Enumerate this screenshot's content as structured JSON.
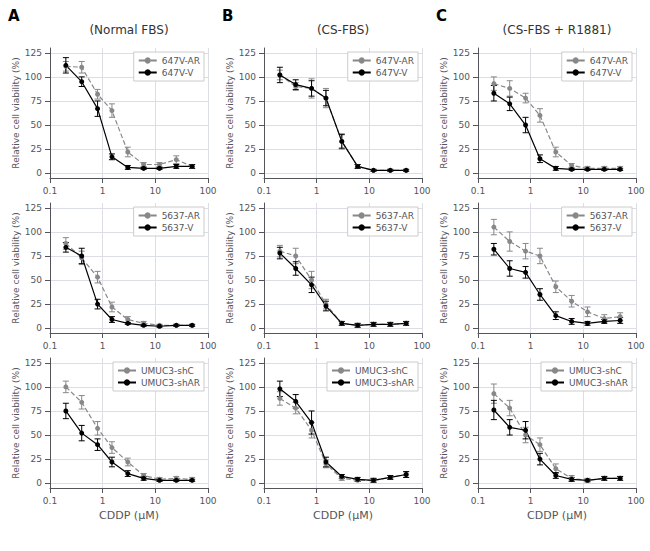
{
  "chart_data": [
    {
      "type": "line",
      "title": "(Normal FBS)",
      "panel_label": "A",
      "y_label": "Relative cell viability (%)",
      "x": [
        0.2,
        0.4,
        0.8,
        1.5,
        3,
        6,
        12,
        25,
        50
      ],
      "series": [
        {
          "name": "647V-AR",
          "color": "#888888",
          "line_style": "dashed",
          "marker": "circle",
          "values": [
            111,
            110,
            82,
            65,
            22,
            9,
            9,
            14,
            7
          ],
          "err": [
            5,
            6,
            5,
            7,
            5,
            2,
            2,
            4,
            2
          ]
        },
        {
          "name": "647V-V",
          "color": "#000000",
          "line_style": "solid",
          "marker": "circle",
          "values": [
            112,
            95,
            67,
            17,
            6,
            5,
            5,
            7,
            7
          ],
          "err": [
            8,
            5,
            8,
            3,
            2,
            1,
            1,
            2,
            2
          ]
        }
      ],
      "annotations": [
        {
          "x": 1.5,
          "y": 82,
          "text": "*"
        },
        {
          "x": 3,
          "y": 33,
          "text": "*"
        }
      ],
      "xlim": [
        0.1,
        100
      ],
      "ylim": [
        -5,
        130
      ],
      "xticks": [
        0.1,
        1,
        10,
        100
      ],
      "yticks": [
        0,
        25,
        50,
        75,
        100,
        125
      ],
      "log": "x",
      "grid": true,
      "legend": "upper right"
    },
    {
      "type": "line",
      "title": "(CS-FBS)",
      "panel_label": "B",
      "y_label": "Relative cell viability (%)",
      "x": [
        0.2,
        0.4,
        0.8,
        1.5,
        3,
        6,
        12,
        25,
        50
      ],
      "series": [
        {
          "name": "647V-AR",
          "color": "#888888",
          "line_style": "dashed",
          "marker": "circle",
          "values": [
            102,
            90,
            88,
            78,
            33,
            7,
            3,
            3,
            3
          ],
          "err": [
            5,
            4,
            10,
            10,
            8,
            2,
            1,
            1,
            1
          ]
        },
        {
          "name": "647V-V",
          "color": "#000000",
          "line_style": "solid",
          "marker": "circle",
          "values": [
            102,
            92,
            88,
            78,
            33,
            7,
            3,
            3,
            3
          ],
          "err": [
            8,
            5,
            8,
            8,
            7,
            2,
            1,
            1,
            1
          ]
        }
      ],
      "annotations": [],
      "xlim": [
        0.1,
        100
      ],
      "ylim": [
        -5,
        130
      ],
      "xticks": [
        0.1,
        1,
        10,
        100
      ],
      "yticks": [
        0,
        25,
        50,
        75,
        100,
        125
      ],
      "log": "x",
      "grid": true,
      "legend": "upper right"
    },
    {
      "type": "line",
      "title": "(CS-FBS + R1881)",
      "panel_label": "C",
      "y_label": "Relative cell viability (%)",
      "x": [
        0.2,
        0.4,
        0.8,
        1.5,
        3,
        6,
        12,
        25,
        50
      ],
      "series": [
        {
          "name": "647V-AR",
          "color": "#888888",
          "line_style": "dashed",
          "marker": "circle",
          "values": [
            93,
            88,
            78,
            60,
            22,
            8,
            5,
            5,
            5
          ],
          "err": [
            7,
            8,
            5,
            7,
            5,
            2,
            2,
            2,
            2
          ]
        },
        {
          "name": "647V-V",
          "color": "#000000",
          "line_style": "solid",
          "marker": "circle",
          "values": [
            83,
            72,
            50,
            15,
            5,
            4,
            4,
            4,
            4
          ],
          "err": [
            8,
            7,
            8,
            4,
            2,
            1,
            1,
            1,
            1
          ]
        }
      ],
      "annotations": [
        {
          "x": 1.5,
          "y": 68,
          "text": "*"
        }
      ],
      "xlim": [
        0.1,
        100
      ],
      "ylim": [
        -5,
        130
      ],
      "xticks": [
        0.1,
        1,
        10,
        100
      ],
      "yticks": [
        0,
        25,
        50,
        75,
        100,
        125
      ],
      "log": "x",
      "grid": true,
      "legend": "upper right"
    },
    {
      "type": "line",
      "y_label": "Relative cell viability (%)",
      "x": [
        0.2,
        0.4,
        0.8,
        1.5,
        3,
        6,
        12,
        25,
        50
      ],
      "series": [
        {
          "name": "5637-AR",
          "color": "#888888",
          "line_style": "dashed",
          "marker": "circle",
          "values": [
            88,
            73,
            53,
            22,
            9,
            5,
            3,
            3,
            3
          ],
          "err": [
            6,
            7,
            6,
            5,
            3,
            2,
            1,
            1,
            1
          ]
        },
        {
          "name": "5637-V",
          "color": "#000000",
          "line_style": "solid",
          "marker": "circle",
          "values": [
            84,
            75,
            25,
            9,
            5,
            3,
            2,
            3,
            3
          ],
          "err": [
            5,
            8,
            5,
            3,
            1,
            1,
            1,
            1,
            1
          ]
        }
      ],
      "annotations": [
        {
          "x": 0.8,
          "y": 60,
          "text": "*"
        },
        {
          "x": 1.5,
          "y": 33,
          "text": "*"
        },
        {
          "x": 3,
          "y": 14,
          "text": "*"
        }
      ],
      "xlim": [
        0.1,
        100
      ],
      "ylim": [
        -5,
        130
      ],
      "xticks": [
        0.1,
        1,
        10,
        100
      ],
      "yticks": [
        0,
        25,
        50,
        75,
        100,
        125
      ],
      "log": "x",
      "grid": true,
      "legend": "upper right"
    },
    {
      "type": "line",
      "y_label": "Relative cell viability (%)",
      "x": [
        0.2,
        0.4,
        0.8,
        1.5,
        3,
        6,
        12,
        25,
        50
      ],
      "series": [
        {
          "name": "5637-AR",
          "color": "#888888",
          "line_style": "dashed",
          "marker": "circle",
          "values": [
            80,
            75,
            50,
            25,
            5,
            3,
            4,
            4,
            5
          ],
          "err": [
            6,
            8,
            9,
            5,
            2,
            2,
            2,
            2,
            2
          ]
        },
        {
          "name": "5637-V",
          "color": "#000000",
          "line_style": "solid",
          "marker": "circle",
          "values": [
            78,
            62,
            45,
            23,
            5,
            3,
            4,
            4,
            5
          ],
          "err": [
            6,
            7,
            8,
            5,
            2,
            2,
            2,
            2,
            2
          ]
        }
      ],
      "annotations": [],
      "xlim": [
        0.1,
        100
      ],
      "ylim": [
        -5,
        130
      ],
      "xticks": [
        0.1,
        1,
        10,
        100
      ],
      "yticks": [
        0,
        25,
        50,
        75,
        100,
        125
      ],
      "log": "x",
      "grid": true,
      "legend": "upper right"
    },
    {
      "type": "line",
      "y_label": "Relative cell viability (%)",
      "x": [
        0.2,
        0.4,
        0.8,
        1.5,
        3,
        6,
        12,
        25,
        50
      ],
      "series": [
        {
          "name": "5637-AR",
          "color": "#888888",
          "line_style": "dashed",
          "marker": "circle",
          "values": [
            105,
            90,
            80,
            75,
            43,
            28,
            17,
            10,
            12
          ],
          "err": [
            8,
            10,
            8,
            8,
            6,
            6,
            5,
            4,
            4
          ]
        },
        {
          "name": "5637-V",
          "color": "#000000",
          "line_style": "solid",
          "marker": "circle",
          "values": [
            82,
            62,
            58,
            35,
            13,
            7,
            5,
            7,
            8
          ],
          "err": [
            6,
            8,
            6,
            6,
            4,
            3,
            2,
            2,
            3
          ]
        }
      ],
      "annotations": [
        {
          "x": 0.8,
          "y": 87,
          "text": "*"
        },
        {
          "x": 3,
          "y": 50,
          "text": "*"
        },
        {
          "x": 6,
          "y": 35,
          "text": "*"
        }
      ],
      "xlim": [
        0.1,
        100
      ],
      "ylim": [
        -5,
        130
      ],
      "xticks": [
        0.1,
        1,
        10,
        100
      ],
      "yticks": [
        0,
        25,
        50,
        75,
        100,
        125
      ],
      "log": "x",
      "grid": true,
      "legend": "upper right"
    },
    {
      "type": "line",
      "x_label": "CDDP (μM)",
      "y_label": "Relative cell viability (%)",
      "x": [
        0.2,
        0.4,
        0.8,
        1.5,
        3,
        6,
        12,
        25,
        50
      ],
      "series": [
        {
          "name": "UMUC3-shC",
          "color": "#888888",
          "line_style": "dashed",
          "marker": "circle",
          "values": [
            100,
            84,
            57,
            37,
            22,
            8,
            4,
            5,
            4
          ],
          "err": [
            6,
            7,
            7,
            6,
            4,
            2,
            2,
            2,
            2
          ]
        },
        {
          "name": "UMUC3-shAR",
          "color": "#000000",
          "line_style": "solid",
          "marker": "circle",
          "values": [
            75,
            52,
            40,
            22,
            10,
            5,
            3,
            3,
            3
          ],
          "err": [
            8,
            8,
            6,
            5,
            3,
            2,
            1,
            1,
            1
          ]
        }
      ],
      "annotations": [
        {
          "x": 0.8,
          "y": 60,
          "text": "*"
        },
        {
          "x": 1.5,
          "y": 44,
          "text": "*"
        }
      ],
      "xlim": [
        0.1,
        100
      ],
      "ylim": [
        -5,
        130
      ],
      "xticks": [
        0.1,
        1,
        10,
        100
      ],
      "yticks": [
        0,
        25,
        50,
        75,
        100,
        125
      ],
      "log": "x",
      "grid": true,
      "legend": "upper right"
    },
    {
      "type": "line",
      "x_label": "CDDP (μM)",
      "y_label": "Relative cell viability (%)",
      "x": [
        0.2,
        0.4,
        0.8,
        1.5,
        3,
        6,
        12,
        25,
        50
      ],
      "series": [
        {
          "name": "UMUC3-shC",
          "color": "#888888",
          "line_style": "dashed",
          "marker": "circle",
          "values": [
            88,
            78,
            55,
            20,
            5,
            3,
            3,
            6,
            9
          ],
          "err": [
            7,
            6,
            8,
            4,
            2,
            1,
            2,
            2,
            3
          ]
        },
        {
          "name": "UMUC3-shAR",
          "color": "#000000",
          "line_style": "solid",
          "marker": "circle",
          "values": [
            98,
            85,
            63,
            22,
            7,
            4,
            3,
            6,
            9
          ],
          "err": [
            8,
            7,
            12,
            5,
            2,
            2,
            2,
            2,
            3
          ]
        }
      ],
      "annotations": [],
      "xlim": [
        0.1,
        100
      ],
      "ylim": [
        -5,
        130
      ],
      "xticks": [
        0.1,
        1,
        10,
        100
      ],
      "yticks": [
        0,
        25,
        50,
        75,
        100,
        125
      ],
      "log": "x",
      "grid": true,
      "legend": "upper right"
    },
    {
      "type": "line",
      "x_label": "CDDP (μM)",
      "y_label": "Relative cell viability (%)",
      "x": [
        0.2,
        0.4,
        0.8,
        1.5,
        3,
        6,
        12,
        25,
        50
      ],
      "series": [
        {
          "name": "UMUC3-shC",
          "color": "#888888",
          "line_style": "dashed",
          "marker": "circle",
          "values": [
            93,
            78,
            50,
            40,
            15,
            5,
            3,
            5,
            5
          ],
          "err": [
            10,
            8,
            8,
            7,
            5,
            3,
            2,
            2,
            2
          ]
        },
        {
          "name": "UMUC3-shAR",
          "color": "#000000",
          "line_style": "solid",
          "marker": "circle",
          "values": [
            76,
            58,
            55,
            25,
            8,
            4,
            3,
            5,
            5
          ],
          "err": [
            10,
            8,
            9,
            6,
            3,
            2,
            1,
            2,
            2
          ]
        }
      ],
      "annotations": [
        {
          "x": 3,
          "y": 22,
          "text": "*"
        },
        {
          "x": 6,
          "y": 9,
          "text": "*"
        }
      ],
      "xlim": [
        0.1,
        100
      ],
      "ylim": [
        -5,
        130
      ],
      "xticks": [
        0.1,
        1,
        10,
        100
      ],
      "yticks": [
        0,
        25,
        50,
        75,
        100,
        125
      ],
      "log": "x",
      "grid": true,
      "legend": "upper right"
    }
  ]
}
